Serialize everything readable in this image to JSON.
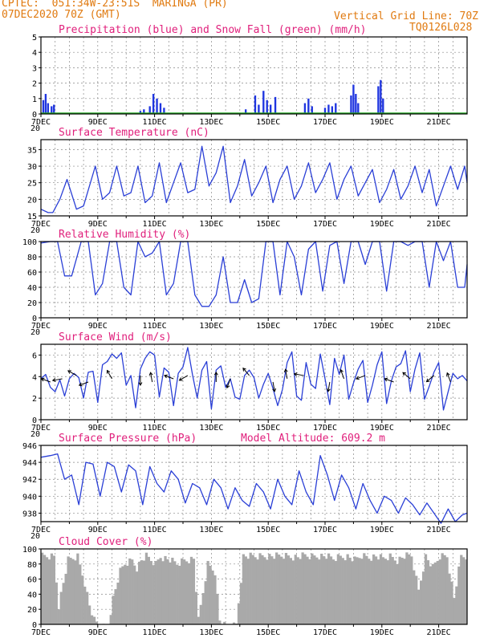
{
  "header": {
    "line1": "CPTEC:  051:34W-23:51S  MARINGA (PR)",
    "line2": "07DEC2020 70Z (GMT)",
    "grid_note": "Vertical Grid Line: 70Z",
    "code": "TQ0126L028"
  },
  "colors": {
    "header": "#e07a10",
    "title": "#e0207c",
    "line": "#2a3fd6",
    "bar": "#1f35e0",
    "snow": "#22aa22",
    "cloud": "#a9a9a9"
  },
  "x_axis": {
    "days": [
      "7DEC",
      "9DEC",
      "11DEC",
      "13DEC",
      "15DEC",
      "17DEC",
      "19DEC",
      "21DEC"
    ],
    "hours_total": 360,
    "year_stub": "20"
  },
  "chart_data": [
    {
      "id": "precip",
      "type": "bar",
      "title": "Precipitation (blue) and Snow Fall (green) (mm/h)",
      "ylim": [
        0,
        5
      ],
      "yticks": [
        0,
        1,
        2,
        3,
        4,
        5
      ],
      "series": [
        {
          "name": "Precipitation",
          "color": "#1f35e0"
        },
        {
          "name": "Snow Fall",
          "color": "#22aa22"
        }
      ],
      "events": [
        {
          "hour": 2,
          "value": 0.9
        },
        {
          "hour": 4,
          "value": 1.3
        },
        {
          "hour": 6,
          "value": 0.7
        },
        {
          "hour": 9,
          "value": 0.5
        },
        {
          "hour": 11,
          "value": 0.6
        },
        {
          "hour": 84,
          "value": 0.2
        },
        {
          "hour": 87,
          "value": 0.3
        },
        {
          "hour": 92,
          "value": 0.5
        },
        {
          "hour": 95,
          "value": 1.3
        },
        {
          "hour": 98,
          "value": 1.0
        },
        {
          "hour": 101,
          "value": 0.7
        },
        {
          "hour": 104,
          "value": 0.4
        },
        {
          "hour": 173,
          "value": 0.3
        },
        {
          "hour": 181,
          "value": 1.2
        },
        {
          "hour": 184,
          "value": 0.6
        },
        {
          "hour": 188,
          "value": 1.5
        },
        {
          "hour": 191,
          "value": 0.9
        },
        {
          "hour": 194,
          "value": 0.6
        },
        {
          "hour": 198,
          "value": 1.1
        },
        {
          "hour": 223,
          "value": 0.7
        },
        {
          "hour": 226,
          "value": 1.0
        },
        {
          "hour": 229,
          "value": 0.5
        },
        {
          "hour": 240,
          "value": 0.4
        },
        {
          "hour": 243,
          "value": 0.6
        },
        {
          "hour": 246,
          "value": 0.5
        },
        {
          "hour": 249,
          "value": 0.7
        },
        {
          "hour": 262,
          "value": 1.2
        },
        {
          "hour": 264,
          "value": 1.9
        },
        {
          "hour": 266,
          "value": 1.3
        },
        {
          "hour": 268,
          "value": 0.7
        },
        {
          "hour": 285,
          "value": 1.8
        },
        {
          "hour": 287,
          "value": 2.2
        },
        {
          "hour": 289,
          "value": 1.0
        }
      ]
    },
    {
      "id": "temp",
      "type": "line",
      "title": "Surface Temperature (nC)",
      "ylim": [
        15,
        38
      ],
      "yticks": [
        15,
        20,
        25,
        30,
        35
      ],
      "series": [
        {
          "name": "Temperature",
          "color": "#2a3fd6",
          "x": [
            0,
            6,
            10,
            16,
            22,
            30,
            36,
            46,
            52,
            58,
            64,
            70,
            76,
            82,
            88,
            94,
            100,
            106,
            112,
            118,
            124,
            130,
            136,
            142,
            148,
            154,
            160,
            166,
            172,
            178,
            184,
            190,
            196,
            202,
            208,
            214,
            220,
            226,
            232,
            238,
            244,
            250,
            256,
            262,
            268,
            274,
            280,
            286,
            292,
            298,
            304,
            310,
            316,
            322,
            328,
            334,
            340,
            346,
            352,
            358,
            360
          ],
          "y": [
            17,
            16,
            16,
            20,
            26,
            17,
            18,
            30,
            20,
            22,
            30,
            21,
            22,
            30,
            19,
            21,
            31,
            19,
            25,
            31,
            22,
            23,
            36,
            24,
            28,
            36,
            19,
            24,
            32,
            21,
            25,
            30,
            19,
            26,
            30,
            20,
            24,
            31,
            22,
            26,
            31,
            20,
            26,
            30,
            21,
            25,
            29,
            19,
            23,
            29,
            20,
            24,
            30,
            22,
            29,
            18,
            24,
            30,
            23,
            30,
            25
          ]
        }
      ]
    },
    {
      "id": "rh",
      "type": "line",
      "title": "Relative Humidity (%)",
      "ylim": [
        0,
        100
      ],
      "yticks": [
        0,
        20,
        40,
        60,
        80,
        100
      ],
      "series": [
        {
          "name": "Relative Humidity",
          "color": "#2a3fd6",
          "x": [
            0,
            8,
            14,
            20,
            26,
            34,
            40,
            46,
            52,
            58,
            64,
            70,
            76,
            82,
            88,
            94,
            100,
            106,
            112,
            118,
            124,
            130,
            136,
            142,
            148,
            154,
            160,
            166,
            172,
            178,
            184,
            190,
            196,
            202,
            208,
            214,
            220,
            226,
            232,
            238,
            244,
            250,
            256,
            262,
            268,
            274,
            280,
            286,
            292,
            298,
            304,
            310,
            316,
            322,
            328,
            334,
            340,
            346,
            352,
            358,
            360
          ],
          "y": [
            98,
            100,
            100,
            55,
            55,
            100,
            100,
            30,
            45,
            100,
            100,
            40,
            30,
            100,
            80,
            85,
            100,
            30,
            45,
            100,
            100,
            30,
            15,
            15,
            30,
            80,
            20,
            20,
            50,
            20,
            25,
            100,
            100,
            30,
            100,
            80,
            30,
            90,
            100,
            35,
            95,
            100,
            45,
            100,
            100,
            70,
            100,
            100,
            35,
            100,
            100,
            95,
            100,
            100,
            40,
            100,
            75,
            100,
            40,
            40,
            70
          ]
        }
      ]
    },
    {
      "id": "wind",
      "type": "line",
      "title": "Surface Wind (m/s)",
      "ylim": [
        0,
        7
      ],
      "yticks": [
        0,
        2,
        4,
        6
      ],
      "series": [
        {
          "name": "Wind speed",
          "color": "#2a3fd6",
          "x": [
            0,
            4,
            8,
            12,
            16,
            20,
            24,
            28,
            32,
            36,
            40,
            44,
            48,
            52,
            56,
            60,
            64,
            68,
            72,
            76,
            80,
            84,
            88,
            92,
            96,
            100,
            104,
            108,
            112,
            116,
            120,
            124,
            128,
            132,
            136,
            140,
            144,
            148,
            152,
            156,
            160,
            164,
            168,
            172,
            176,
            180,
            184,
            188,
            192,
            196,
            200,
            204,
            208,
            212,
            216,
            220,
            224,
            228,
            232,
            236,
            240,
            244,
            248,
            252,
            256,
            260,
            264,
            268,
            272,
            276,
            280,
            284,
            288,
            292,
            296,
            300,
            304,
            308,
            312,
            316,
            320,
            324,
            328,
            332,
            336,
            340,
            344,
            348,
            352,
            356,
            360
          ],
          "y": [
            3.8,
            4.2,
            3.0,
            2.6,
            3.7,
            2.2,
            3.8,
            4.3,
            3.9,
            2.0,
            4.4,
            4.5,
            1.6,
            5.1,
            5.4,
            6.1,
            5.7,
            6.2,
            3.2,
            4.1,
            1.1,
            4.7,
            5.7,
            6.3,
            6.0,
            2.1,
            4.8,
            4.4,
            1.3,
            4.3,
            4.9,
            6.7,
            4.2,
            2.0,
            4.6,
            5.4,
            1.0,
            4.6,
            5.0,
            3.0,
            3.8,
            2.1,
            1.9,
            4.1,
            4.6,
            3.9,
            2.0,
            3.3,
            4.3,
            2.9,
            1.3,
            2.8,
            5.3,
            6.3,
            2.2,
            1.8,
            5.3,
            3.3,
            2.9,
            6.1,
            3.8,
            1.4,
            5.7,
            4.2,
            6.0,
            1.9,
            3.4,
            4.7,
            5.5,
            1.6,
            3.2,
            5.1,
            6.3,
            1.5,
            3.6,
            4.9,
            5.2,
            6.4,
            2.6,
            4.7,
            6.2,
            1.9,
            3.1,
            4.4,
            5.3,
            0.9,
            2.6,
            4.3,
            3.8,
            4.1,
            3.6
          ]
        }
      ]
    },
    {
      "id": "pres",
      "type": "line",
      "title": "Surface Pressure (hPa)",
      "annotation": "Model Altitude: 609.2 m",
      "ylim": [
        937,
        946
      ],
      "yticks": [
        938,
        940,
        942,
        944,
        946
      ],
      "series": [
        {
          "name": "Pressure",
          "color": "#2a3fd6",
          "x": [
            0,
            8,
            14,
            20,
            26,
            32,
            38,
            44,
            50,
            56,
            62,
            68,
            74,
            80,
            86,
            92,
            98,
            104,
            110,
            116,
            122,
            128,
            134,
            140,
            146,
            152,
            158,
            164,
            170,
            176,
            182,
            188,
            194,
            200,
            206,
            212,
            218,
            224,
            230,
            236,
            242,
            248,
            254,
            260,
            266,
            272,
            278,
            284,
            290,
            296,
            302,
            308,
            314,
            320,
            326,
            332,
            338,
            344,
            350,
            356,
            360
          ],
          "y": [
            944.6,
            944.8,
            945.0,
            942.0,
            942.5,
            939.0,
            944.0,
            943.8,
            940.0,
            944.0,
            943.5,
            940.5,
            943.7,
            943.0,
            939.0,
            943.5,
            941.5,
            940.5,
            943.0,
            942.0,
            939.2,
            941.5,
            941.0,
            939.0,
            942.0,
            941.0,
            938.5,
            941.0,
            939.5,
            938.8,
            941.5,
            940.5,
            938.5,
            942.0,
            940.0,
            939.0,
            943.0,
            940.5,
            939.0,
            944.8,
            942.5,
            939.5,
            942.5,
            941.0,
            938.5,
            941.5,
            939.5,
            938.0,
            940.0,
            939.5,
            938.0,
            939.8,
            939.0,
            937.8,
            939.2,
            938.0,
            936.8,
            938.5,
            937.0,
            937.8,
            938.0
          ]
        }
      ]
    },
    {
      "id": "cloud",
      "type": "area",
      "title": "Cloud Cover (%)",
      "ylim": [
        0,
        100
      ],
      "yticks": [
        0,
        20,
        40,
        60,
        80,
        100
      ],
      "series": [
        {
          "name": "Cloud Cover",
          "color": "#a9a9a9",
          "x": [
            0,
            10,
            14,
            22,
            30,
            36,
            40,
            44,
            50,
            56,
            60,
            66,
            70,
            76,
            80,
            84,
            88,
            92,
            96,
            100,
            108,
            114,
            120,
            128,
            132,
            140,
            146,
            150,
            156,
            160,
            164,
            170,
            176,
            182,
            188,
            196,
            204,
            210,
            216,
            222,
            228,
            234,
            240,
            246,
            252,
            258,
            264,
            270,
            276,
            282,
            288,
            294,
            300,
            306,
            312,
            318,
            324,
            330,
            336,
            342,
            348,
            354,
            360
          ],
          "y": [
            95,
            95,
            30,
            90,
            95,
            60,
            30,
            10,
            0,
            5,
            40,
            75,
            85,
            90,
            80,
            90,
            95,
            90,
            85,
            95,
            90,
            85,
            90,
            92,
            10,
            85,
            75,
            10,
            0,
            2,
            5,
            95,
            95,
            95,
            96,
            95,
            96,
            95,
            94,
            96,
            95,
            96,
            95,
            92,
            95,
            95,
            90,
            96,
            94,
            95,
            92,
            95,
            90,
            95,
            96,
            50,
            95,
            80,
            95,
            96,
            40,
            95,
            95
          ]
        }
      ]
    }
  ]
}
